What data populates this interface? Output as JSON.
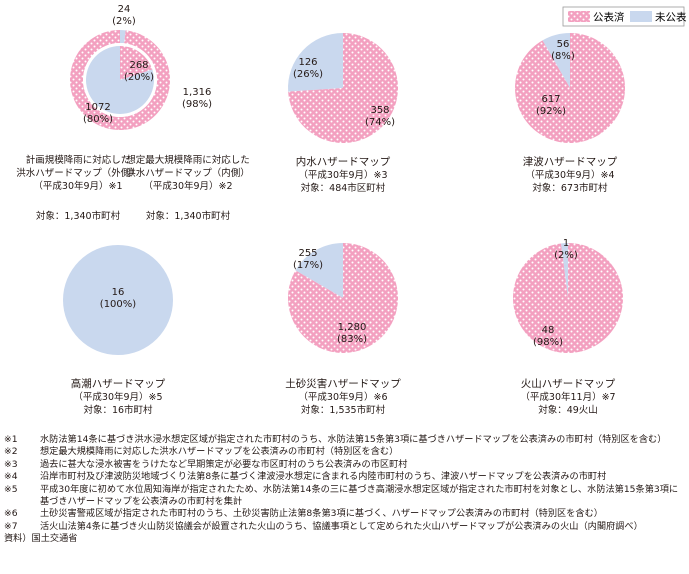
{
  "legend": {
    "published": "公表済",
    "unpublished": "未公表"
  },
  "colors": {
    "published": "#f3a0c0",
    "published_dot": "#ffffff",
    "unpublished": "#c9d8ee",
    "text": "#231815"
  },
  "chart_data": [
    {
      "type": "pie",
      "id": "flood",
      "variant": "double-donut",
      "series": [
        {
          "name": "計画規模降雨に対応した洪水ハザードマップ（外側）",
          "ring": "outer",
          "values": [
            1316,
            24
          ],
          "labels": [
            {
              "count": "1,316",
              "pct": "(98%)"
            },
            {
              "count": "24",
              "pct": "(2%)"
            }
          ],
          "categories": [
            "公表済",
            "未公表"
          ]
        },
        {
          "name": "想定最大規模降雨に対応した洪水ハザードマップ（内側）",
          "ring": "inner",
          "values": [
            268,
            1072
          ],
          "labels": [
            {
              "count": "268",
              "pct": "(20%)"
            },
            {
              "count": "1072",
              "pct": "(80%)"
            }
          ],
          "categories": [
            "公表済",
            "未公表"
          ]
        }
      ],
      "captions": [
        [
          "計画規模降雨に対応した",
          "洪水ハザードマップ（外側）",
          "（平成30年9月）※1"
        ],
        [
          "想定最大規模降雨に対応した",
          "洪水ハザードマップ（内側）",
          "（平成30年9月）※2"
        ],
        [
          "対象：1,340市町村",
          "対象：1,340市町村"
        ]
      ]
    },
    {
      "type": "pie",
      "id": "inland",
      "categories": [
        "公表済",
        "未公表"
      ],
      "values": [
        358,
        126
      ],
      "labels": [
        {
          "count": "358",
          "pct": "(74%)"
        },
        {
          "count": "126",
          "pct": "(26%)"
        }
      ],
      "title": "内水ハザードマップ",
      "date": "（平成30年9月）※3",
      "target": "対象：484市区町村"
    },
    {
      "type": "pie",
      "id": "tsunami",
      "categories": [
        "公表済",
        "未公表"
      ],
      "values": [
        617,
        56
      ],
      "labels": [
        {
          "count": "617",
          "pct": "(92%)"
        },
        {
          "count": "56",
          "pct": "(8%)"
        }
      ],
      "title": "津波ハザードマップ",
      "date": "（平成30年9月）※4",
      "target": "対象：673市町村"
    },
    {
      "type": "pie",
      "id": "storm-surge",
      "categories": [
        "公表済",
        "未公表"
      ],
      "values": [
        0,
        16
      ],
      "labels": [
        null,
        {
          "count": "16",
          "pct": "(100%)"
        }
      ],
      "title": "高潮ハザードマップ",
      "date": "（平成30年9月）※5",
      "target": "対象：16市町村"
    },
    {
      "type": "pie",
      "id": "sediment",
      "categories": [
        "公表済",
        "未公表"
      ],
      "values": [
        1280,
        255
      ],
      "labels": [
        {
          "count": "1,280",
          "pct": "(83%)"
        },
        {
          "count": "255",
          "pct": "(17%)"
        }
      ],
      "title": "土砂災害ハザードマップ",
      "date": "（平成30年9月）※6",
      "target": "対象：1,535市町村"
    },
    {
      "type": "pie",
      "id": "volcano",
      "categories": [
        "公表済",
        "未公表"
      ],
      "values": [
        48,
        1
      ],
      "labels": [
        {
          "count": "48",
          "pct": "(98%)"
        },
        {
          "count": "1",
          "pct": "(2%)"
        }
      ],
      "title": "火山ハザードマップ",
      "date": "（平成30年11月）※7",
      "target": "対象：49火山"
    }
  ],
  "notes": [
    {
      "mark": "※1",
      "text": "水防法第14条に基づき洪水浸水想定区域が指定された市町村のうち、水防法第15条第3項に基づきハザードマップを公表済みの市町村（特別区を含む）"
    },
    {
      "mark": "※2",
      "text": "想定最大規模降雨に対応した洪水ハザードマップを公表済みの市町村（特別区を含む）"
    },
    {
      "mark": "※3",
      "text": "過去に甚大な浸水被害をうけたなど早期策定が必要な市区町村のうち公表済みの市区町村"
    },
    {
      "mark": "※4",
      "text": "沿岸市町村及び津波防災地域づくり法第8条に基づく津波浸水想定に含まれる内陸市町村のうち、津波ハザードマップを公表済みの市町村"
    },
    {
      "mark": "※5",
      "text": "平成30年度に初めて水位周知海岸が指定されたため、水防法第14条の三に基づき高潮浸水想定区域が指定された市町村を対象とし、水防法第15条第3項に基づきハザードマップを公表済みの市町村を集計"
    },
    {
      "mark": "※6",
      "text": "土砂災害警戒区域が指定された市町村のうち、土砂災害防止法第8条第3項に基づく、ハザードマップ公表済みの市町村（特別区を含む）"
    },
    {
      "mark": "※7",
      "text": "活火山法第4条に基づき火山防災協議会が設置された火山のうち、協議事項として定められた火山ハザードマップが公表済みの火山（内閣府調べ）"
    }
  ],
  "source": "資料）国土交通省"
}
